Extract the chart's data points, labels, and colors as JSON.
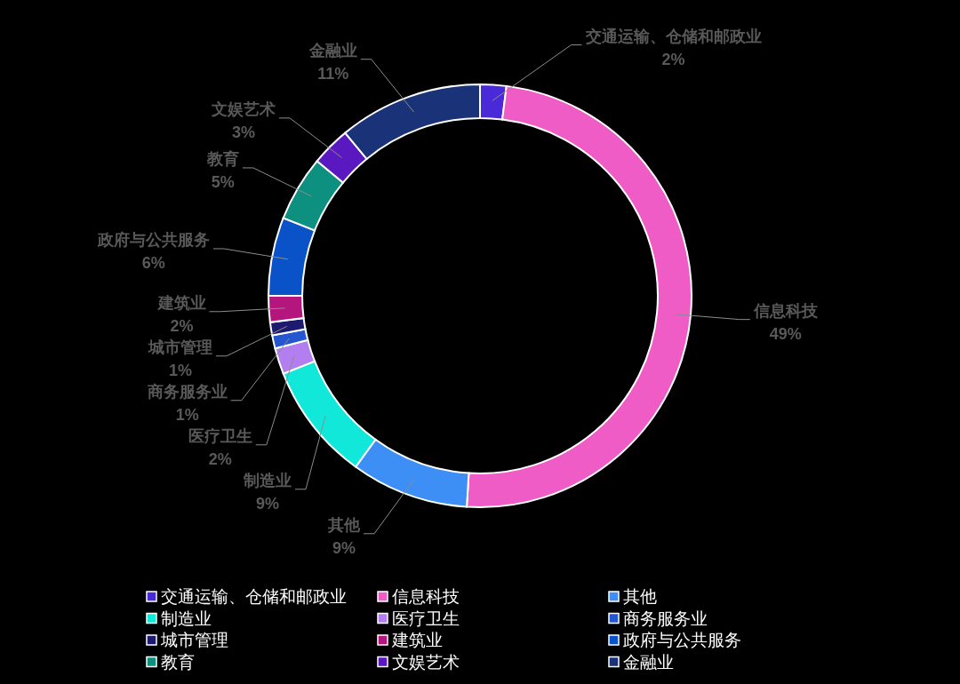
{
  "chart_data": {
    "type": "donut",
    "categories": [
      "交通运输、仓储和邮政业",
      "信息科技",
      "其他",
      "制造业",
      "医疗卫生",
      "商务服务业",
      "城市管理",
      "建筑业",
      "政府与公共服务",
      "教育",
      "文娱艺术",
      "金融业"
    ],
    "values": [
      2,
      49,
      9,
      9,
      2,
      1,
      1,
      2,
      6,
      5,
      3,
      11
    ],
    "colors": [
      "#4a2ad8",
      "#f05cc6",
      "#3d8ef5",
      "#12e8da",
      "#b27ef0",
      "#2456d2",
      "#1e1a70",
      "#b5167e",
      "#0a52c8",
      "#0e9080",
      "#5a18c0",
      "#1a3278"
    ],
    "value_labels": [
      "2%",
      "49%",
      "9%",
      "9%",
      "2%",
      "1%",
      "1%",
      "2%",
      "6%",
      "5%",
      "3%",
      "11%"
    ],
    "legend": "bottom"
  }
}
